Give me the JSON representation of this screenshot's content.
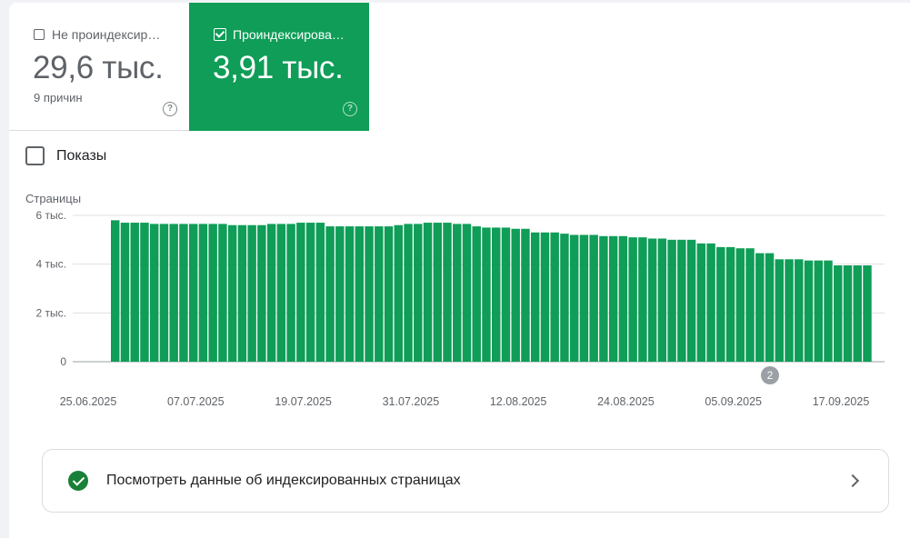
{
  "tabs": {
    "not_indexed": {
      "label": "Не проиндексир…",
      "value": "29,6 тыс.",
      "subtext": "9 причин",
      "checked": false,
      "help_icon": "help-circle-icon"
    },
    "indexed": {
      "label": "Проиндексирова…",
      "value": "3,91 тыс.",
      "checked": true,
      "help_icon": "help-circle-icon",
      "color": "#0f9d58"
    }
  },
  "impressions": {
    "label": "Показы",
    "checked": false
  },
  "chart_data": {
    "type": "bar",
    "ylabel": "Страницы",
    "yticks": [
      "0",
      "2 тыс.",
      "4 тыс.",
      "6 тыс."
    ],
    "ylim": [
      0,
      6000
    ],
    "xticks": [
      "25.06.2025",
      "07.07.2025",
      "19.07.2025",
      "31.07.2025",
      "12.08.2025",
      "24.08.2025",
      "05.09.2025",
      "17.09.2025"
    ],
    "bar_color": "#0f9d58",
    "grid": true,
    "annotation": "2",
    "values": [
      5800,
      5700,
      5700,
      5700,
      5650,
      5650,
      5650,
      5650,
      5650,
      5650,
      5650,
      5650,
      5600,
      5600,
      5600,
      5600,
      5650,
      5650,
      5650,
      5700,
      5700,
      5700,
      5550,
      5550,
      5550,
      5550,
      5550,
      5550,
      5550,
      5600,
      5650,
      5650,
      5700,
      5700,
      5700,
      5650,
      5650,
      5550,
      5500,
      5500,
      5500,
      5450,
      5450,
      5300,
      5300,
      5300,
      5250,
      5200,
      5200,
      5200,
      5150,
      5150,
      5150,
      5100,
      5100,
      5050,
      5050,
      5000,
      5000,
      5000,
      4850,
      4850,
      4700,
      4700,
      4650,
      4650,
      4450,
      4450,
      4200,
      4200,
      4200,
      4150,
      4150,
      4150,
      3950,
      3950,
      3950,
      3950
    ]
  },
  "cta": {
    "text": "Посмотреть данные об индексированных страницах",
    "icon": "check-circle-icon",
    "chevron": "chevron-right-icon"
  }
}
